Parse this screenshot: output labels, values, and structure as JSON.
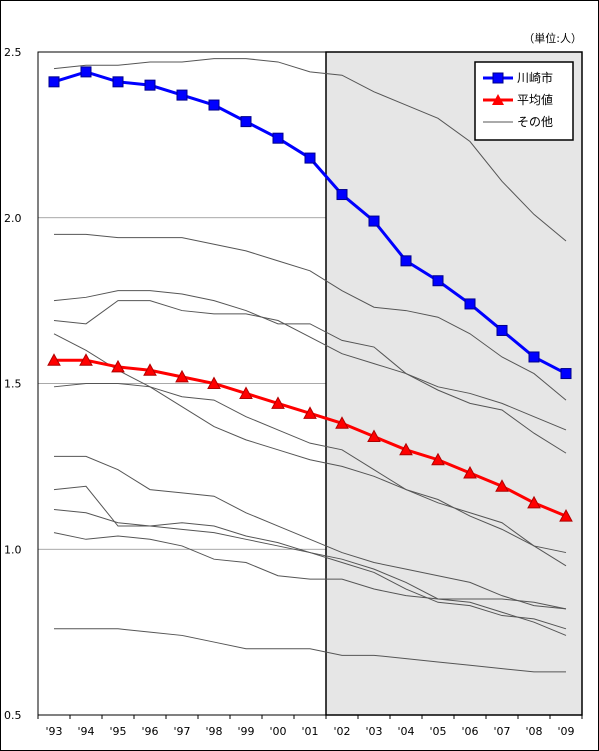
{
  "chart_data": {
    "type": "line",
    "unit_label": "（単位:人）",
    "categories": [
      "'93",
      "'94",
      "'95",
      "'96",
      "'97",
      "'98",
      "'99",
      "'00",
      "'01",
      "'02",
      "'03",
      "'04",
      "'05",
      "'06",
      "'07",
      "'08",
      "'09"
    ],
    "ylim": [
      0.5,
      2.5
    ],
    "yticks": [
      "0.5",
      "1.0",
      "1.5",
      "2.0",
      "2.5"
    ],
    "grid": true,
    "legend_position": "top-right",
    "highlight_region": {
      "from": "'02",
      "to": "'09"
    },
    "series": [
      {
        "name": "川崎市",
        "color": "#0000ff",
        "marker": "square",
        "emphasis": true,
        "values": [
          2.41,
          2.44,
          2.41,
          2.4,
          2.37,
          2.34,
          2.29,
          2.24,
          2.18,
          2.07,
          1.99,
          1.87,
          1.81,
          1.74,
          1.66,
          1.58,
          1.53
        ]
      },
      {
        "name": "平均値",
        "color": "#ff0000",
        "marker": "triangle",
        "emphasis": true,
        "values": [
          1.57,
          1.57,
          1.55,
          1.54,
          1.52,
          1.5,
          1.47,
          1.44,
          1.41,
          1.38,
          1.34,
          1.3,
          1.27,
          1.23,
          1.19,
          1.14,
          1.1
        ]
      }
    ],
    "other_label": "その他",
    "other_color": "#555555",
    "other_series": [
      [
        2.45,
        2.46,
        2.46,
        2.47,
        2.47,
        2.48,
        2.48,
        2.47,
        2.44,
        2.43,
        2.38,
        2.34,
        2.3,
        2.23,
        2.11,
        2.01,
        1.93
      ],
      [
        1.95,
        1.95,
        1.94,
        1.94,
        1.94,
        1.92,
        1.9,
        1.87,
        1.84,
        1.78,
        1.73,
        1.72,
        1.7,
        1.65,
        1.58,
        1.53,
        1.45
      ],
      [
        1.75,
        1.76,
        1.78,
        1.78,
        1.77,
        1.75,
        1.72,
        1.68,
        1.68,
        1.63,
        1.61,
        1.53,
        1.48,
        1.44,
        1.42,
        1.35,
        1.29
      ],
      [
        1.69,
        1.68,
        1.75,
        1.75,
        1.72,
        1.71,
        1.71,
        1.69,
        1.64,
        1.59,
        1.56,
        1.53,
        1.49,
        1.47,
        1.44,
        1.4,
        1.36
      ],
      [
        1.65,
        1.6,
        1.54,
        1.49,
        1.43,
        1.37,
        1.33,
        1.3,
        1.27,
        1.25,
        1.22,
        1.18,
        1.15,
        1.1,
        1.06,
        1.01,
        0.99
      ],
      [
        1.49,
        1.5,
        1.5,
        1.49,
        1.46,
        1.45,
        1.4,
        1.36,
        1.32,
        1.3,
        1.24,
        1.18,
        1.14,
        1.11,
        1.08,
        1.01,
        0.95
      ],
      [
        1.28,
        1.28,
        1.24,
        1.18,
        1.17,
        1.16,
        1.11,
        1.07,
        1.03,
        0.99,
        0.96,
        0.94,
        0.92,
        0.9,
        0.86,
        0.83,
        0.82
      ],
      [
        1.18,
        1.19,
        1.07,
        1.07,
        1.08,
        1.07,
        1.04,
        1.02,
        0.99,
        0.97,
        0.94,
        0.9,
        0.85,
        0.84,
        0.81,
        0.78,
        0.74
      ],
      [
        1.12,
        1.11,
        1.08,
        1.07,
        1.06,
        1.05,
        1.03,
        1.01,
        0.99,
        0.96,
        0.93,
        0.88,
        0.84,
        0.83,
        0.8,
        0.79,
        0.76
      ],
      [
        1.05,
        1.03,
        1.04,
        1.03,
        1.01,
        0.97,
        0.96,
        0.92,
        0.91,
        0.91,
        0.88,
        0.86,
        0.85,
        0.85,
        0.85,
        0.84,
        0.82
      ],
      [
        0.76,
        0.76,
        0.76,
        0.75,
        0.74,
        0.72,
        0.7,
        0.7,
        0.7,
        0.68,
        0.68,
        0.67,
        0.66,
        0.65,
        0.64,
        0.63,
        0.63
      ]
    ]
  }
}
